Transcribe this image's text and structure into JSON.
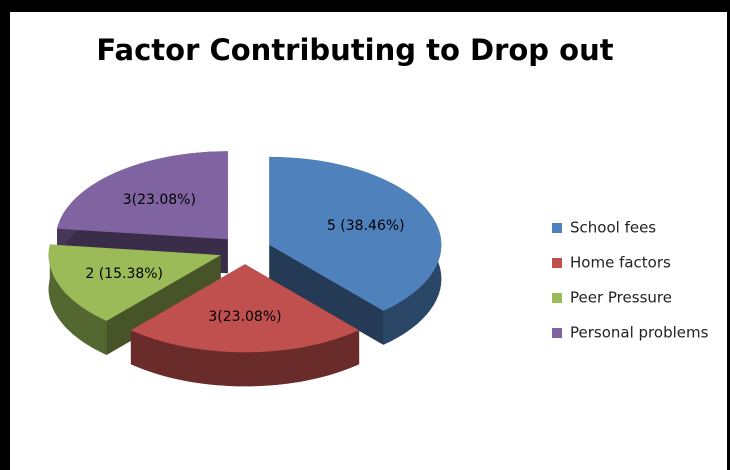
{
  "chart_data": {
    "type": "pie3d",
    "title": "Factor Contributing to Drop out",
    "categories": [
      "School fees",
      "Home factors",
      "Peer Pressure",
      "Personal problems"
    ],
    "values": [
      5,
      3,
      2,
      3
    ],
    "value_labels": [
      "5 (38.46%)",
      "3(23.08%)",
      "2 (15.38%)",
      "3(23.08%)"
    ],
    "colors": [
      "#4f81bd",
      "#c0504d",
      "#9bbb59",
      "#8064a2"
    ],
    "legend": "right"
  }
}
